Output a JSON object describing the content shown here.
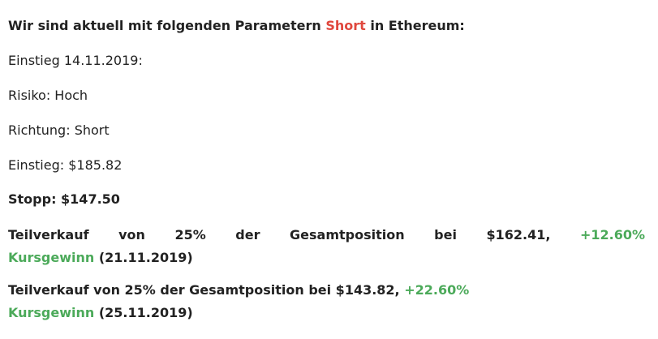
{
  "heading": {
    "before": "Wir sind aktuell mit folgenden Parametern ",
    "highlight": "Short",
    "after": " in Ethereum:"
  },
  "lines": [
    "Einstieg 14.11.2019:",
    "Risiko: Hoch",
    "Richtung: Short",
    "Einstieg: $185.82"
  ],
  "stop": "Stopp: $147.50",
  "sales": [
    {
      "text": "Teilverkauf von 25% der Gesamtposition bei $162.41, ",
      "gain": "+12.60%",
      "gain_word": "Kursgewinn",
      "date": " (21.11.2019)"
    },
    {
      "text": "Teilverkauf von 25% der Gesamtposition bei $143.82, ",
      "gain": "+22.60%",
      "gain_word": "Kursgewinn",
      "date": " (25.11.2019)"
    }
  ]
}
